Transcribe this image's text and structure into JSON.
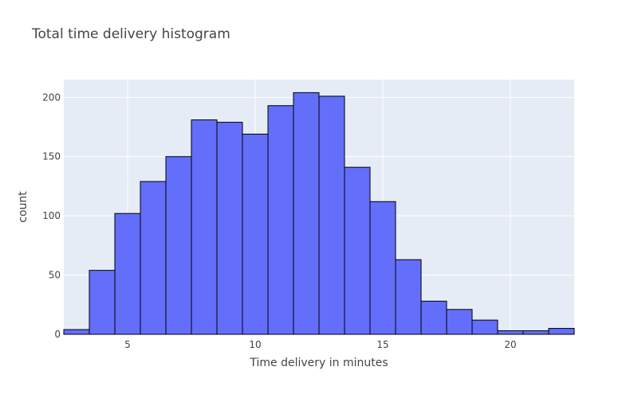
{
  "colors": {
    "plot_bg": "#e5ecf6",
    "bar_fill": "#636efa",
    "bar_stroke": "#000000",
    "grid": "#ffffff",
    "text": "#444444"
  },
  "chart_data": {
    "type": "bar",
    "title": "Total time delivery histogram",
    "xlabel": "Time delivery in minutes",
    "ylabel": "count",
    "bin_width": 1,
    "bins_start": [
      2,
      3,
      4,
      5,
      6,
      7,
      8,
      9,
      10,
      11,
      12,
      13,
      14,
      15,
      16,
      17,
      18,
      19,
      20,
      21,
      22
    ],
    "values": [
      4,
      54,
      102,
      129,
      150,
      181,
      179,
      169,
      193,
      204,
      201,
      141,
      112,
      63,
      28,
      21,
      12,
      3,
      3,
      5
    ],
    "bins": [
      2.5,
      3.5,
      4.5,
      5.5,
      6.5,
      7.5,
      8.5,
      9.5,
      10.5,
      11.5,
      12.5,
      13.5,
      14.5,
      15.5,
      16.5,
      17.5,
      18.5,
      19.5,
      20.5,
      21.5
    ],
    "xlim": [
      2.5,
      22.5
    ],
    "ylim": [
      0,
      215
    ],
    "xticks": [
      5,
      10,
      15,
      20
    ],
    "yticks": [
      0,
      50,
      100,
      150,
      200
    ],
    "grid": true
  }
}
